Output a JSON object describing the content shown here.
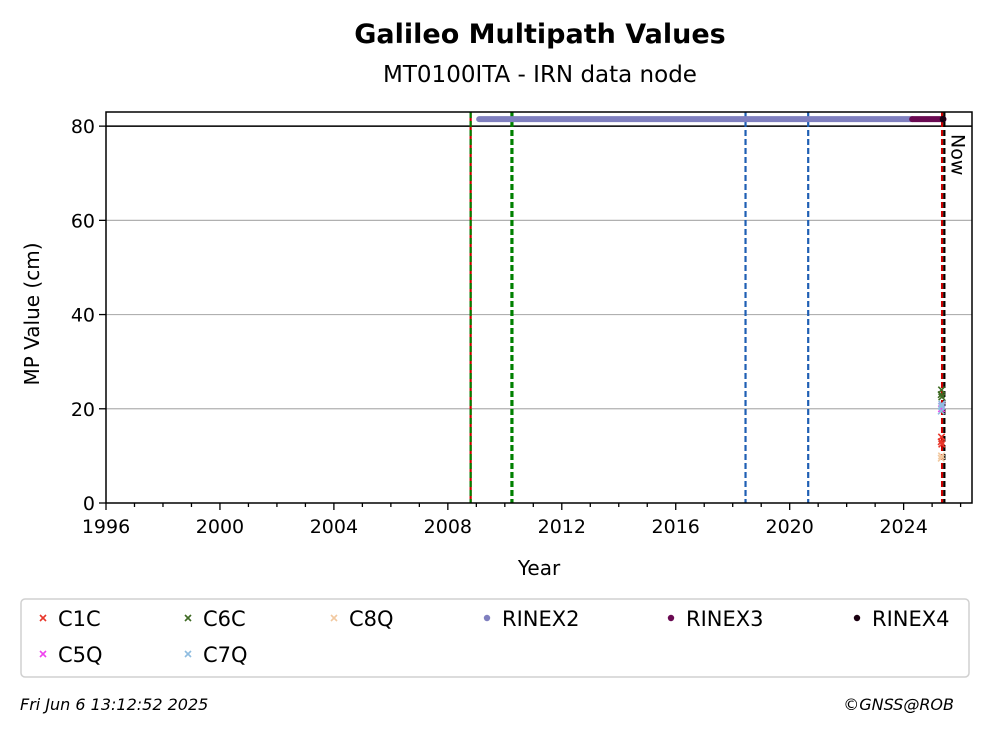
{
  "chart_data": {
    "type": "scatter",
    "title": "Galileo Multipath Values",
    "subtitle": "MT0100ITA - IRN data node",
    "xlabel": "Year",
    "ylabel": "MP Value (cm)",
    "xlim": [
      1996,
      2026.4
    ],
    "ylim": [
      0,
      83
    ],
    "xticks": [
      1996,
      2000,
      2004,
      2008,
      2012,
      2016,
      2020,
      2024
    ],
    "yticks": [
      0,
      20,
      40,
      60,
      80
    ],
    "grid": "y",
    "reference_line_y": 80,
    "now_label": "Now",
    "now_year": 2025.43,
    "vlines": [
      {
        "x": 2008.8,
        "color": "#cc0000",
        "style": "solid"
      },
      {
        "x": 2008.8,
        "color": "#008000",
        "style": "dashed"
      },
      {
        "x": 2010.25,
        "color": "#008000",
        "style": "dashed"
      },
      {
        "x": 2018.45,
        "color": "#1f5fb4",
        "style": "dashed"
      },
      {
        "x": 2020.65,
        "color": "#1f5fb4",
        "style": "dashed"
      },
      {
        "x": 2025.35,
        "color": "#008000",
        "style": "dashed"
      },
      {
        "x": 2025.35,
        "color": "#cc0000",
        "style": "dashed"
      },
      {
        "x": 2025.43,
        "color": "#000000",
        "style": "dashed"
      }
    ],
    "series": [
      {
        "name": "C1C",
        "marker": "x",
        "color": "#e8372b",
        "x": [
          2025.32,
          2025.33,
          2025.34
        ],
        "y": [
          13,
          14,
          12.5
        ]
      },
      {
        "name": "C5Q",
        "marker": "x",
        "color": "#ee44ee",
        "x": [
          2025.33,
          2025.34
        ],
        "y": [
          20,
          20.6
        ]
      },
      {
        "name": "C6C",
        "marker": "x",
        "color": "#3f6b24",
        "x": [
          2025.32,
          2025.33,
          2025.34
        ],
        "y": [
          23,
          24,
          22.5
        ]
      },
      {
        "name": "C7Q",
        "marker": "x",
        "color": "#8fbde0",
        "x": [
          2025.32,
          2025.33,
          2025.34
        ],
        "y": [
          19.5,
          20.5,
          21
        ]
      },
      {
        "name": "C8Q",
        "marker": "x",
        "color": "#f2c9a0",
        "x": [
          2025.32,
          2025.33
        ],
        "y": [
          9.5,
          10
        ]
      },
      {
        "name": "RINEX2",
        "marker": "o",
        "color": "#7f7fbf",
        "range": [
          2009.1,
          2024.3
        ],
        "y": 81.5
      },
      {
        "name": "RINEX3",
        "marker": "o",
        "color": "#6a0a52",
        "range": [
          2024.3,
          2025.4
        ],
        "y": 81.5
      },
      {
        "name": "RINEX4",
        "marker": "o",
        "color": "#1a0010",
        "x": [
          2025.38
        ],
        "y": [
          81.5
        ]
      }
    ],
    "legend_placement": "bottom",
    "legend_order": [
      "C1C",
      "C6C",
      "C8Q",
      "RINEX2",
      "RINEX3",
      "RINEX4",
      "C5Q",
      "C7Q"
    ]
  },
  "footer": {
    "timestamp": "Fri Jun  6 13:12:52 2025",
    "credit": "©GNSS@ROB"
  }
}
